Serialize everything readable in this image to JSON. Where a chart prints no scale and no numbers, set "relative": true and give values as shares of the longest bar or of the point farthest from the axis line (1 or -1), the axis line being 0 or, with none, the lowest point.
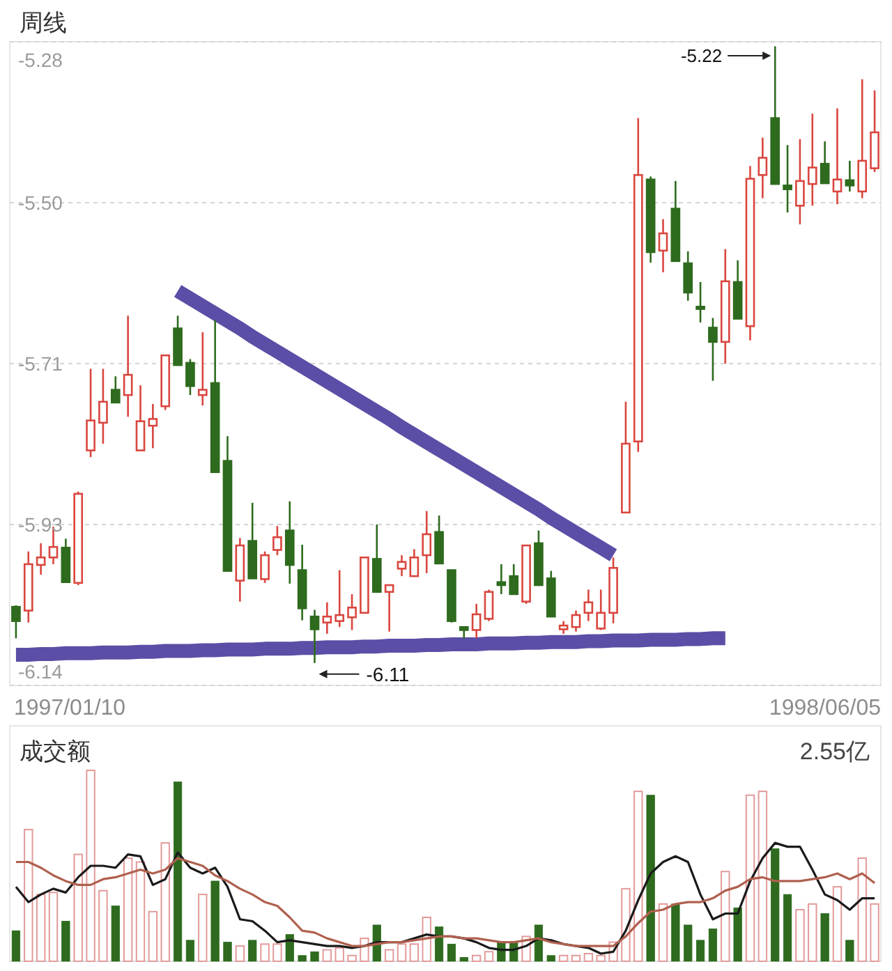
{
  "chart_data": [
    {
      "type": "candlestick",
      "title": "周线",
      "categories": [
        null,
        null,
        null,
        null,
        null,
        null,
        null,
        null,
        null,
        null,
        null,
        null,
        null,
        null,
        null,
        null,
        null,
        null,
        null,
        null,
        null,
        null,
        null,
        null,
        null,
        null,
        null,
        null,
        null,
        null,
        null,
        null,
        null,
        null,
        null,
        null,
        null,
        null,
        null,
        null,
        null,
        null,
        null,
        null,
        null,
        null,
        null,
        null,
        null,
        null,
        null,
        null,
        null,
        null,
        null,
        null,
        null,
        null,
        null,
        null,
        null,
        null,
        null,
        null,
        null,
        null,
        null,
        null,
        null,
        null
      ],
      "ohlc": [
        [
          -6.035,
          -6.033,
          -6.077,
          -6.054
        ],
        [
          -6.04,
          -5.961,
          -6.056,
          -5.978
        ],
        [
          -5.979,
          -5.95,
          -5.992,
          -5.969
        ],
        [
          -5.969,
          -5.928,
          -5.978,
          -5.955
        ],
        [
          -5.956,
          -5.944,
          -6.002,
          -6.002
        ],
        [
          -6.003,
          -5.881,
          -6.006,
          -5.884
        ],
        [
          -5.826,
          -5.717,
          -5.835,
          -5.786
        ],
        [
          -5.789,
          -5.717,
          -5.817,
          -5.761
        ],
        [
          -5.745,
          -5.727,
          -5.762,
          -5.762
        ],
        [
          -5.752,
          -5.646,
          -5.781,
          -5.725
        ],
        [
          -5.826,
          -5.739,
          -5.826,
          -5.787
        ],
        [
          -5.793,
          -5.764,
          -5.823,
          -5.784
        ],
        [
          -5.767,
          -5.698,
          -5.772,
          -5.699
        ],
        [
          -5.663,
          -5.646,
          -5.712,
          -5.712
        ],
        [
          -5.709,
          -5.704,
          -5.752,
          -5.74
        ],
        [
          -5.752,
          -5.668,
          -5.766,
          -5.745
        ],
        [
          -5.736,
          -5.652,
          -5.855,
          -5.855
        ],
        [
          -5.84,
          -5.807,
          -5.987,
          -5.987
        ],
        [
          -6.0,
          -5.943,
          -6.028,
          -5.953
        ],
        [
          -5.947,
          -5.896,
          -5.997,
          -5.997
        ],
        [
          -5.998,
          -5.961,
          -6.003,
          -5.966
        ],
        [
          -5.959,
          -5.927,
          -5.966,
          -5.942
        ],
        [
          -5.933,
          -5.894,
          -6.004,
          -5.979
        ],
        [
          -5.986,
          -5.952,
          -6.053,
          -6.037
        ],
        [
          -6.048,
          -6.039,
          -6.11,
          -6.065
        ],
        [
          -6.056,
          -6.029,
          -6.071,
          -6.048
        ],
        [
          -6.054,
          -5.986,
          -6.062,
          -6.046
        ],
        [
          -6.049,
          -6.018,
          -6.066,
          -6.036
        ],
        [
          -6.043,
          -5.969,
          -6.043,
          -5.969
        ],
        [
          -5.971,
          -5.925,
          -6.015,
          -6.015
        ],
        [
          -6.015,
          -6.005,
          -6.068,
          -6.006
        ],
        [
          -5.984,
          -5.966,
          -5.994,
          -5.975
        ],
        [
          -5.994,
          -5.958,
          -5.995,
          -5.969
        ],
        [
          -5.966,
          -5.907,
          -5.99,
          -5.938
        ],
        [
          -5.935,
          -5.913,
          -5.977,
          -5.977
        ],
        [
          -5.986,
          -5.986,
          -6.056,
          -6.054
        ],
        [
          -6.062,
          -6.062,
          -6.077,
          -6.066
        ],
        [
          -6.066,
          -6.031,
          -6.077,
          -6.045
        ],
        [
          -6.051,
          -6.012,
          -6.054,
          -6.015
        ],
        [
          -6.002,
          -5.978,
          -6.018,
          -6.006
        ],
        [
          -5.994,
          -5.978,
          -6.018,
          -6.018
        ],
        [
          -6.028,
          -5.952,
          -6.031,
          -5.953
        ],
        [
          -5.95,
          -5.933,
          -6.006,
          -6.006
        ],
        [
          -5.997,
          -5.987,
          -6.048,
          -6.048
        ],
        [
          -6.065,
          -6.054,
          -6.071,
          -6.06
        ],
        [
          -6.062,
          -6.04,
          -6.068,
          -6.046
        ],
        [
          -6.043,
          -6.012,
          -6.054,
          -6.029
        ],
        [
          -6.064,
          -6.012,
          -6.066,
          -6.043
        ],
        [
          -6.043,
          -5.969,
          -6.057,
          -5.983
        ],
        [
          -5.909,
          -5.761,
          -5.909,
          -5.817
        ],
        [
          -5.814,
          -5.382,
          -5.828,
          -5.458
        ],
        [
          -5.464,
          -5.46,
          -5.575,
          -5.561
        ],
        [
          -5.559,
          -5.517,
          -5.588,
          -5.536
        ],
        [
          -5.503,
          -5.466,
          -5.573,
          -5.573
        ],
        [
          -5.576,
          -5.56,
          -5.626,
          -5.615
        ],
        [
          -5.634,
          -5.601,
          -5.655,
          -5.637
        ],
        [
          -5.662,
          -5.649,
          -5.733,
          -5.681
        ],
        [
          -5.681,
          -5.557,
          -5.71,
          -5.6
        ],
        [
          -5.601,
          -5.572,
          -5.65,
          -5.65
        ],
        [
          -5.66,
          -5.446,
          -5.679,
          -5.463
        ],
        [
          -5.458,
          -5.408,
          -5.489,
          -5.435
        ],
        [
          -5.382,
          -5.286,
          -5.47,
          -5.47
        ],
        [
          -5.472,
          -5.418,
          -5.508,
          -5.477
        ],
        [
          -5.499,
          -5.41,
          -5.524,
          -5.466
        ],
        [
          -5.47,
          -5.376,
          -5.499,
          -5.448
        ],
        [
          -5.443,
          -5.413,
          -5.469,
          -5.469
        ],
        [
          -5.48,
          -5.369,
          -5.497,
          -5.464
        ],
        [
          -5.465,
          -5.439,
          -5.48,
          -5.472
        ],
        [
          -5.48,
          -5.33,
          -5.489,
          -5.439
        ],
        [
          -5.449,
          -5.345,
          -5.454,
          -5.401
        ]
      ],
      "colors": [
        "#2e6b1e",
        "#d9463e",
        "#d9463e",
        "#d9463e",
        "#2e6b1e",
        "#d9463e",
        "#d9463e",
        "#d9463e",
        "#2e6b1e",
        "#d9463e",
        "#d9463e",
        "#d9463e",
        "#d9463e",
        "#2e6b1e",
        "#2e6b1e",
        "#d9463e",
        "#2e6b1e",
        "#2e6b1e",
        "#d9463e",
        "#2e6b1e",
        "#d9463e",
        "#d9463e",
        "#2e6b1e",
        "#2e6b1e",
        "#2e6b1e",
        "#d9463e",
        "#d9463e",
        "#d9463e",
        "#d9463e",
        "#2e6b1e",
        "#d9463e",
        "#d9463e",
        "#d9463e",
        "#d9463e",
        "#2e6b1e",
        "#2e6b1e",
        "#2e6b1e",
        "#d9463e",
        "#d9463e",
        "#2e6b1e",
        "#2e6b1e",
        "#d9463e",
        "#2e6b1e",
        "#2e6b1e",
        "#d9463e",
        "#d9463e",
        "#d9463e",
        "#d9463e",
        "#d9463e",
        "#d9463e",
        "#d9463e",
        "#2e6b1e",
        "#d9463e",
        "#2e6b1e",
        "#2e6b1e",
        "#2e6b1e",
        "#2e6b1e",
        "#d9463e",
        "#2e6b1e",
        "#d9463e",
        "#d9463e",
        "#2e6b1e",
        "#2e6b1e",
        "#d9463e",
        "#d9463e",
        "#2e6b1e",
        "#d9463e",
        "#2e6b1e",
        "#d9463e",
        "#d9463e"
      ],
      "series": [
        {
          "type": "line",
          "color": "#5a4ea6",
          "values": [
            null,
            null,
            null,
            null,
            null,
            null,
            null,
            null,
            null,
            null,
            null,
            null,
            null,
            -5.613,
            -5.623,
            -5.633,
            -5.643,
            -5.653,
            -5.663,
            -5.674,
            -5.684,
            -5.694,
            -5.704,
            -5.714,
            -5.724,
            -5.734,
            -5.744,
            -5.754,
            -5.764,
            -5.774,
            -5.784,
            -5.795,
            -5.805,
            -5.815,
            -5.825,
            -5.835,
            -5.845,
            -5.855,
            -5.865,
            -5.875,
            -5.885,
            -5.895,
            -5.905,
            -5.916,
            -5.926,
            -5.936,
            -5.946,
            -5.956,
            -5.966,
            null,
            null,
            null,
            null,
            null,
            null,
            null,
            null,
            null,
            null,
            null,
            null,
            null,
            null,
            null,
            null,
            null,
            null,
            null,
            null,
            null
          ]
        },
        {
          "type": "line",
          "color": "#5a4ea6",
          "values": [
            -6.099,
            -6.099,
            -6.098,
            -6.098,
            -6.097,
            -6.097,
            -6.097,
            -6.096,
            -6.096,
            -6.096,
            -6.095,
            -6.095,
            -6.094,
            -6.094,
            -6.094,
            -6.093,
            -6.093,
            -6.092,
            -6.092,
            -6.092,
            -6.091,
            -6.091,
            -6.091,
            -6.09,
            -6.09,
            -6.089,
            -6.089,
            -6.089,
            -6.088,
            -6.088,
            -6.087,
            -6.087,
            -6.087,
            -6.086,
            -6.086,
            -6.085,
            -6.085,
            -6.085,
            -6.084,
            -6.084,
            -6.084,
            -6.083,
            -6.083,
            -6.082,
            -6.082,
            -6.082,
            -6.081,
            -6.081,
            -6.08,
            -6.08,
            -6.08,
            -6.079,
            -6.079,
            -6.079,
            -6.078,
            -6.078,
            -6.077,
            -6.077,
            null,
            null,
            null,
            null,
            null,
            null,
            null,
            null,
            null,
            null,
            null,
            null
          ]
        }
      ],
      "ylim": [
        -6.14,
        -5.28
      ],
      "yticks": [
        -5.28,
        {
          "value": -5.495,
          "label": "-5.50"
        },
        -5.71,
        {
          "value": -5.925,
          "label": "-5.93"
        },
        -6.14
      ],
      "grid": "y",
      "annotations": [
        "-5.22",
        "-6.11",
        "1997/01/10",
        "1998/06/05"
      ]
    },
    {
      "type": "bar",
      "title": "成交额",
      "relative": true,
      "categories": [
        null,
        null,
        null,
        null,
        null,
        null,
        null,
        null,
        null,
        null,
        null,
        null,
        null,
        null,
        null,
        null,
        null,
        null,
        null,
        null,
        null,
        null,
        null,
        null,
        null,
        null,
        null,
        null,
        null,
        null,
        null,
        null,
        null,
        null,
        null,
        null,
        null,
        null,
        null,
        null,
        null,
        null,
        null,
        null,
        null,
        null,
        null,
        null,
        null,
        null,
        null,
        null,
        null,
        null,
        null,
        null,
        null,
        null,
        null,
        null,
        null,
        null,
        null,
        null,
        null,
        null,
        null,
        null,
        null,
        null
      ],
      "series": [
        {
          "type": "bar",
          "colors": [
            "#2e6b1e",
            "#e39a9a",
            "#e39a9a",
            "#e39a9a",
            "#2e6b1e",
            "#e39a9a",
            "#e39a9a",
            "#e39a9a",
            "#2e6b1e",
            "#e39a9a",
            "#e39a9a",
            "#e39a9a",
            "#e39a9a",
            "#2e6b1e",
            "#2e6b1e",
            "#e39a9a",
            "#2e6b1e",
            "#2e6b1e",
            "#e39a9a",
            "#2e6b1e",
            "#e39a9a",
            "#e39a9a",
            "#2e6b1e",
            "#2e6b1e",
            "#2e6b1e",
            "#e39a9a",
            "#e39a9a",
            "#e39a9a",
            "#e39a9a",
            "#2e6b1e",
            "#e39a9a",
            "#e39a9a",
            "#e39a9a",
            "#e39a9a",
            "#2e6b1e",
            "#2e6b1e",
            "#2e6b1e",
            "#e39a9a",
            "#e39a9a",
            "#2e6b1e",
            "#2e6b1e",
            "#e39a9a",
            "#2e6b1e",
            "#2e6b1e",
            "#e39a9a",
            "#e39a9a",
            "#e39a9a",
            "#e39a9a",
            "#e39a9a",
            "#e39a9a",
            "#e39a9a",
            "#2e6b1e",
            "#e39a9a",
            "#2e6b1e",
            "#2e6b1e",
            "#2e6b1e",
            "#2e6b1e",
            "#e39a9a",
            "#2e6b1e",
            "#e39a9a",
            "#e39a9a",
            "#2e6b1e",
            "#2e6b1e",
            "#e39a9a",
            "#e39a9a",
            "#2e6b1e",
            "#e39a9a",
            "#2e6b1e",
            "#e39a9a",
            "#e39a9a"
          ],
          "values": [
            0.16,
            0.69,
            0.35,
            0.36,
            0.21,
            0.56,
            1.0,
            0.37,
            0.29,
            0.54,
            0.52,
            0.26,
            0.62,
            0.94,
            0.11,
            0.35,
            0.42,
            0.1,
            0.08,
            0.11,
            0.09,
            0.09,
            0.14,
            0.03,
            0.05,
            0.06,
            0.07,
            0.03,
            0.12,
            0.19,
            0.06,
            0.09,
            0.09,
            0.23,
            0.18,
            0.09,
            0.02,
            0.03,
            0.05,
            0.1,
            0.1,
            0.13,
            0.19,
            0.03,
            0.03,
            0.03,
            0.04,
            0.03,
            0.1,
            0.38,
            0.89,
            0.87,
            0.3,
            0.3,
            0.19,
            0.11,
            0.17,
            0.47,
            0.28,
            0.87,
            0.89,
            0.59,
            0.35,
            0.27,
            0.3,
            0.25,
            0.39,
            0.11,
            0.54,
            0.3
          ]
        },
        {
          "type": "line",
          "color": "#1a1a1a",
          "values": [
            0.39,
            0.31,
            0.35,
            0.38,
            0.36,
            0.44,
            0.5,
            0.5,
            0.49,
            0.56,
            0.55,
            0.4,
            0.43,
            0.57,
            0.49,
            0.46,
            0.49,
            0.39,
            0.22,
            0.21,
            0.16,
            0.1,
            0.11,
            0.1,
            0.09,
            0.08,
            0.08,
            0.07,
            0.08,
            0.1,
            0.1,
            0.1,
            0.12,
            0.14,
            0.13,
            0.13,
            0.12,
            0.1,
            0.07,
            0.06,
            0.06,
            0.08,
            0.12,
            0.11,
            0.09,
            0.08,
            0.07,
            0.04,
            0.05,
            0.16,
            0.32,
            0.46,
            0.52,
            0.55,
            0.52,
            0.35,
            0.22,
            0.25,
            0.25,
            0.42,
            0.54,
            0.62,
            0.6,
            0.6,
            0.48,
            0.35,
            0.32,
            0.27,
            0.33,
            0.33
          ]
        },
        {
          "type": "line",
          "color": "#b0604f",
          "values": [
            0.52,
            0.52,
            0.49,
            0.45,
            0.42,
            0.4,
            0.4,
            0.43,
            0.44,
            0.46,
            0.48,
            0.46,
            0.48,
            0.54,
            0.52,
            0.5,
            0.45,
            0.42,
            0.38,
            0.35,
            0.31,
            0.29,
            0.23,
            0.16,
            0.15,
            0.12,
            0.1,
            0.08,
            0.08,
            0.09,
            0.1,
            0.1,
            0.11,
            0.12,
            0.13,
            0.13,
            0.12,
            0.12,
            0.11,
            0.1,
            0.1,
            0.11,
            0.12,
            0.1,
            0.09,
            0.08,
            0.08,
            0.08,
            0.08,
            0.13,
            0.2,
            0.26,
            0.27,
            0.3,
            0.31,
            0.31,
            0.33,
            0.37,
            0.39,
            0.43,
            0.44,
            0.42,
            0.42,
            0.42,
            0.43,
            0.44,
            0.46,
            0.43,
            0.46,
            0.41
          ]
        }
      ],
      "annotations": [
        "2.55亿"
      ]
    }
  ]
}
